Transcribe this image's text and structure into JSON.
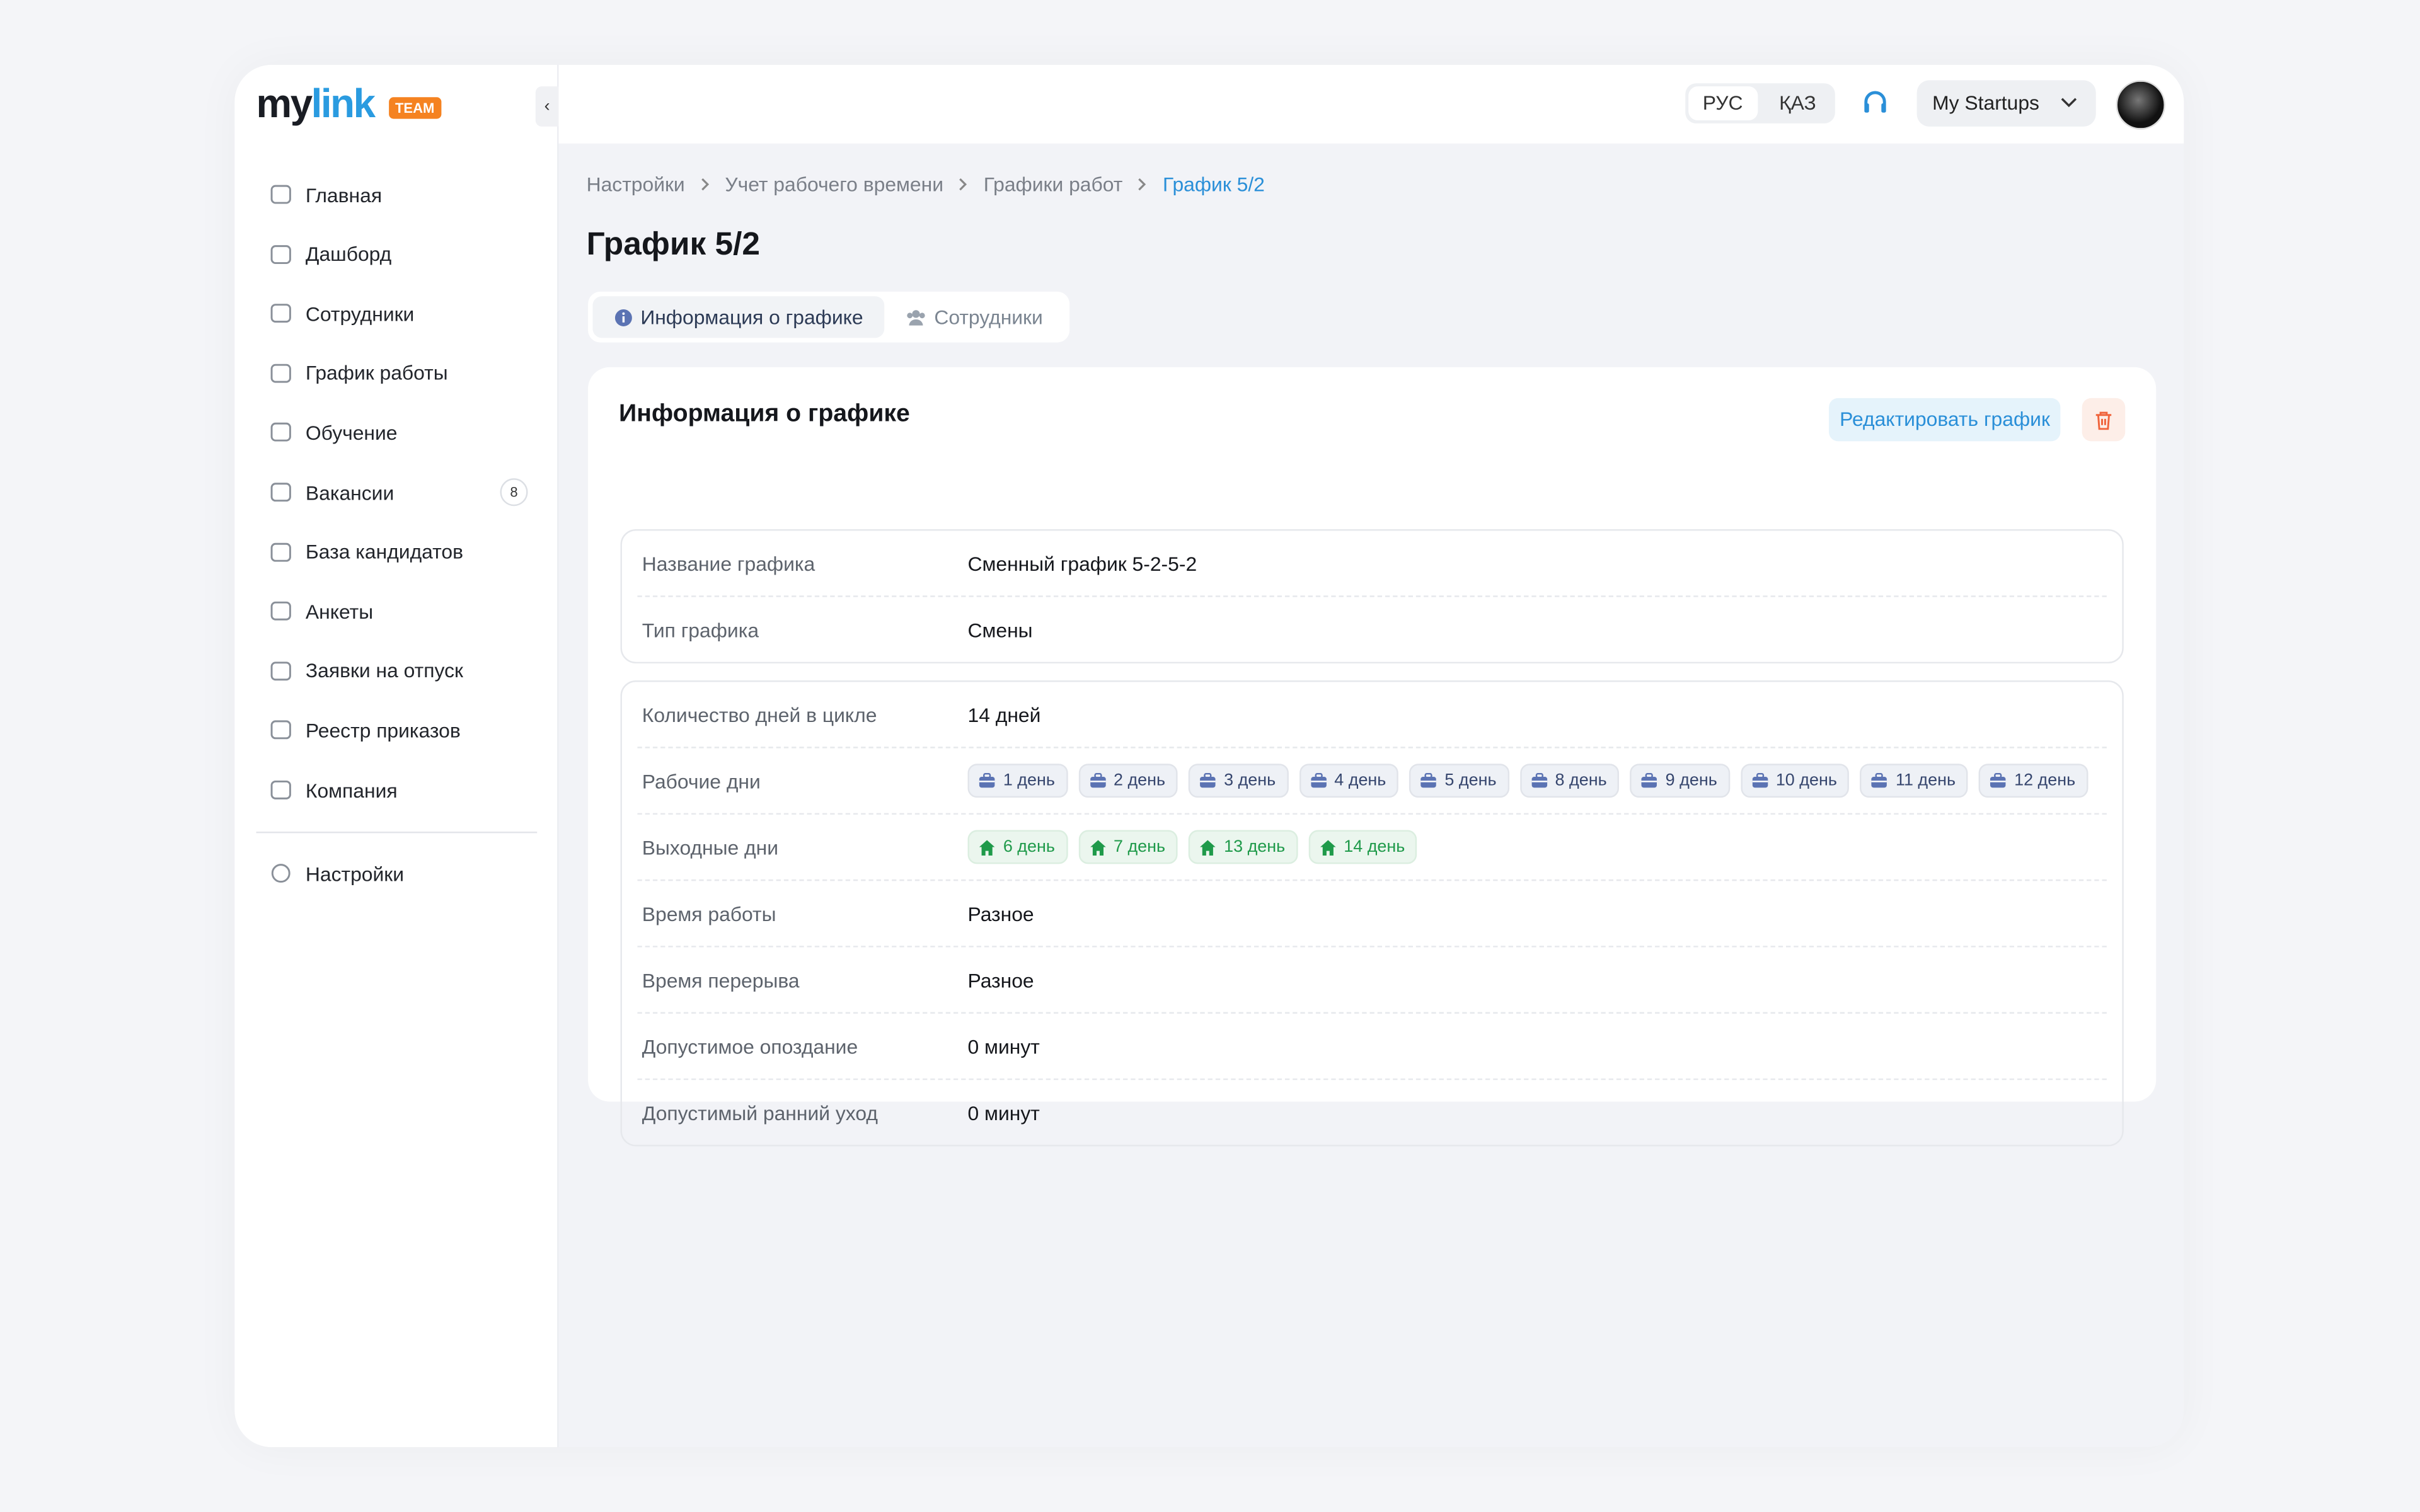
{
  "logo": {
    "part1": "my",
    "part2": "link",
    "badge": "TEAM"
  },
  "sidebar": {
    "items": [
      {
        "label": "Главная"
      },
      {
        "label": "Дашборд"
      },
      {
        "label": "Сотрудники"
      },
      {
        "label": "График работы"
      },
      {
        "label": "Обучение"
      },
      {
        "label": "Вакансии",
        "badge": "8"
      },
      {
        "label": "База кандидатов"
      },
      {
        "label": "Анкеты"
      },
      {
        "label": "Заявки на отпуск"
      },
      {
        "label": "Реестр приказов"
      },
      {
        "label": "Компания"
      }
    ],
    "settings": "Настройки"
  },
  "topbar": {
    "languages": [
      "РУС",
      "ҚАЗ"
    ],
    "workspace": "My Startups"
  },
  "breadcrumbs": [
    "Настройки",
    "Учет рабочего времени",
    "Графики работ",
    "График 5/2"
  ],
  "page_title": "График 5/2",
  "tabs": [
    "Информация о графике",
    "Сотрудники"
  ],
  "card": {
    "title": "Информация о графике",
    "edit_button": "Редактировать график",
    "group1": [
      {
        "label": "Название графика",
        "value": "Сменный график 5-2-5-2"
      },
      {
        "label": "Тип графика",
        "value": "Смены"
      }
    ],
    "group2": [
      {
        "label": "Количество дней в цикле",
        "value": "14 дней"
      },
      {
        "label": "Рабочие дни",
        "work_chips": [
          "1 день",
          "2 день",
          "3 день",
          "4 день",
          "5 день",
          "8 день",
          "9 день",
          "10 день",
          "11 день",
          "12 день"
        ]
      },
      {
        "label": "Выходные дни",
        "off_chips": [
          "6 день",
          "7 день",
          "13 день",
          "14 день"
        ]
      },
      {
        "label": "Время работы",
        "value": "Разное"
      },
      {
        "label": "Время перерыва",
        "value": "Разное"
      },
      {
        "label": "Допустимое опоздание",
        "value": "0 минут"
      },
      {
        "label": "Допустимый ранний уход",
        "value": "0 минут"
      }
    ]
  }
}
